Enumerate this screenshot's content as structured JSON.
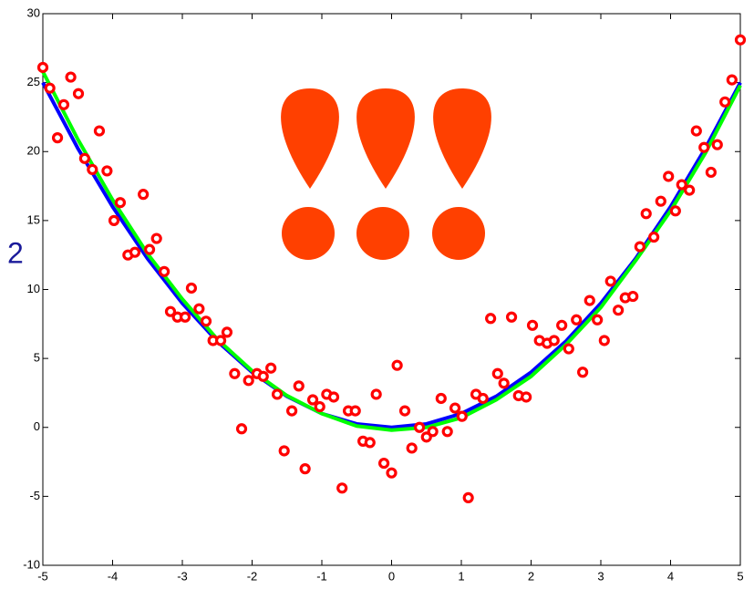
{
  "chart_data": {
    "type": "scatter",
    "annotation": "2",
    "xlim": [
      -5,
      5
    ],
    "ylim": [
      -10,
      30
    ],
    "xticks": [
      -5,
      -4,
      -3,
      -2,
      -1,
      0,
      1,
      2,
      3,
      4,
      5
    ],
    "yticks": [
      -10,
      -5,
      0,
      5,
      10,
      15,
      20,
      25,
      30
    ],
    "grid": false,
    "series": [
      {
        "mode": "line",
        "color": "#0000ff",
        "x": [
          -5,
          -4.5,
          -4,
          -3.5,
          -3,
          -2.5,
          -2,
          -1.5,
          -1,
          -0.5,
          0,
          0.5,
          1,
          1.5,
          2,
          2.5,
          3,
          3.5,
          4,
          4.5,
          5
        ],
        "values": [
          25,
          20.25,
          16,
          12.25,
          9,
          6.25,
          4,
          2.25,
          1,
          0.25,
          0,
          0.25,
          1,
          2.25,
          4,
          6.25,
          9,
          12.25,
          16,
          20.25,
          25
        ]
      },
      {
        "mode": "line",
        "color": "#00ff00",
        "x": [
          -5,
          -4.5,
          -4,
          -3.5,
          -3,
          -2.5,
          -2,
          -1.5,
          -1,
          -0.5,
          0,
          0.5,
          1,
          1.5,
          2,
          2.5,
          3,
          3.5,
          4,
          4.5,
          5
        ],
        "values": [
          25.8,
          20.9,
          16.5,
          12.6,
          9.3,
          6.4,
          4.1,
          2.3,
          1.0,
          0.1,
          -0.2,
          0.0,
          0.7,
          2.0,
          3.7,
          6.0,
          8.7,
          12.1,
          15.7,
          19.9,
          24.8
        ]
      },
      {
        "mode": "markers",
        "color": "#ff0000",
        "x": [
          -5.0,
          -4.9,
          -4.79,
          -4.7,
          -4.6,
          -4.49,
          -4.4,
          -4.29,
          -4.19,
          -4.08,
          -3.98,
          -3.89,
          -3.78,
          -3.68,
          -3.56,
          -3.47,
          -3.37,
          -3.26,
          -3.17,
          -3.07,
          -2.96,
          -2.87,
          -2.76,
          -2.66,
          -2.56,
          -2.45,
          -2.36,
          -2.25,
          -2.15,
          -2.05,
          -1.93,
          -1.84,
          -1.73,
          -1.64,
          -1.54,
          -1.43,
          -1.33,
          -1.24,
          -1.13,
          -1.03,
          -0.93,
          -0.83,
          -0.71,
          -0.62,
          -0.52,
          -0.41,
          -0.31,
          -0.22,
          -0.11,
          0.0,
          0.08,
          0.19,
          0.29,
          0.4,
          0.5,
          0.59,
          0.71,
          0.8,
          0.91,
          1.01,
          1.1,
          1.21,
          1.31,
          1.42,
          1.52,
          1.61,
          1.72,
          1.82,
          1.93,
          2.02,
          2.12,
          2.23,
          2.33,
          2.44,
          2.54,
          2.65,
          2.74,
          2.84,
          2.95,
          3.05,
          3.14,
          3.25,
          3.35,
          3.46,
          3.56,
          3.65,
          3.76,
          3.86,
          3.97,
          4.07,
          4.16,
          4.27,
          4.37,
          4.48,
          4.58,
          4.67,
          4.78,
          4.88,
          5.0
        ],
        "values": [
          26.1,
          24.6,
          21.0,
          23.4,
          25.4,
          24.2,
          19.5,
          18.7,
          21.5,
          18.6,
          15.0,
          16.3,
          12.5,
          12.7,
          16.9,
          12.9,
          13.7,
          11.3,
          8.4,
          8.0,
          8.0,
          10.1,
          8.6,
          7.7,
          6.3,
          6.3,
          6.9,
          3.9,
          -0.1,
          3.4,
          3.9,
          3.7,
          4.3,
          2.4,
          -1.7,
          1.2,
          3.0,
          -3.0,
          2.0,
          1.5,
          2.4,
          2.2,
          -4.4,
          1.2,
          1.2,
          -1.0,
          -1.1,
          2.4,
          -2.6,
          -3.3,
          4.5,
          1.2,
          -1.5,
          0.0,
          -0.7,
          -0.3,
          2.1,
          -0.3,
          1.4,
          0.8,
          -5.1,
          2.4,
          2.1,
          7.9,
          3.9,
          3.2,
          8.0,
          2.3,
          2.2,
          7.4,
          6.3,
          6.1,
          6.3,
          7.4,
          5.7,
          7.8,
          4.0,
          9.2,
          7.8,
          6.3,
          10.6,
          8.5,
          9.4,
          9.5,
          13.1,
          15.5,
          13.8,
          16.4,
          18.2,
          15.7,
          17.6,
          17.2,
          21.5,
          20.3,
          18.5,
          20.5,
          23.6,
          25.2,
          28.1
        ]
      }
    ]
  }
}
